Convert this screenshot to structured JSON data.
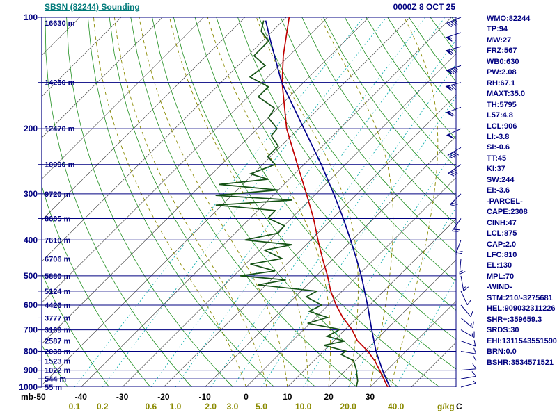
{
  "header": {
    "title": "SBSN (82244) Sounding",
    "valid_time": "0000Z 8 OCT 25"
  },
  "axes": {
    "pressure_unit": "mb",
    "temp_unit": "C",
    "mixing_unit": "g/kg",
    "pressure_labels": [
      100,
      200,
      300,
      400,
      500,
      600,
      700,
      800,
      900,
      1000
    ],
    "altitude_labels": [
      {
        "p": 100,
        "text": "16630 m"
      },
      {
        "p": 150,
        "text": "14250 m"
      },
      {
        "p": 200,
        "text": "12470 m"
      },
      {
        "p": 250,
        "text": "10990 m"
      },
      {
        "p": 300,
        "text": "9720 m"
      },
      {
        "p": 350,
        "text": "8605 m"
      },
      {
        "p": 400,
        "text": "7610 m"
      },
      {
        "p": 450,
        "text": "6706 m"
      },
      {
        "p": 500,
        "text": "5880 m"
      },
      {
        "p": 550,
        "text": "5124 m"
      },
      {
        "p": 600,
        "text": "4426 m"
      },
      {
        "p": 650,
        "text": "3777 m"
      },
      {
        "p": 700,
        "text": "3169 m"
      },
      {
        "p": 750,
        "text": "2587 m"
      },
      {
        "p": 800,
        "text": "2038 m"
      },
      {
        "p": 850,
        "text": "1523 m"
      },
      {
        "p": 900,
        "text": "1022 m"
      },
      {
        "p": 950,
        "text": "544 m"
      },
      {
        "p": 1000,
        "text": "55 m"
      }
    ],
    "temp_labels": [
      -50,
      -40,
      -30,
      -20,
      -10,
      0,
      10,
      20,
      30
    ]
  },
  "colors": {
    "navy": "#000080",
    "teal": "#007a7a",
    "red": "#c00000",
    "dewpoint_green": "#145214",
    "parcel_blue": "#00008b",
    "dry_adiabat_green": "#1f8f1f",
    "mixing_cyan": "#00aaaa",
    "moist_olive": "#8a8a00",
    "isotherm_black": "#2b2b2b"
  },
  "chart_data": {
    "type": "line",
    "subtype": "skew-t-log-p-sounding",
    "station": "SBSN (82244)",
    "valid": "0000Z 8 OCT 25",
    "pressure_range_mb": [
      100,
      1000
    ],
    "grid": {
      "pressure_lines_mb": [
        100,
        150,
        200,
        250,
        300,
        350,
        400,
        450,
        500,
        550,
        600,
        650,
        700,
        750,
        800,
        850,
        900,
        950,
        1000
      ],
      "isotherms_c": {
        "min": -130,
        "max": 40,
        "step": 10
      },
      "dry_adiabats_theta_k": {
        "min": 230,
        "max": 450,
        "step": 10
      },
      "moist_adiabats_start_c": [
        0,
        5,
        10,
        15,
        20,
        25,
        30,
        35
      ],
      "mixing_ratio_gkg": [
        0.1,
        0.2,
        0.6,
        1.0,
        2.0,
        3.0,
        5.0,
        10.0,
        20.0,
        40.0
      ]
    },
    "series": [
      {
        "name": "temperature",
        "color_key": "red",
        "points": [
          [
            1000,
            34.3
          ],
          [
            898,
            28.1
          ],
          [
            848,
            24.7
          ],
          [
            799,
            20.7
          ],
          [
            748,
            15.6
          ],
          [
            698,
            11.6
          ],
          [
            648,
            6.5
          ],
          [
            600,
            1.9
          ],
          [
            550,
            -2.8
          ],
          [
            500,
            -7.3
          ],
          [
            449,
            -12.7
          ],
          [
            400,
            -18.3
          ],
          [
            349,
            -24.7
          ],
          [
            300,
            -32.3
          ],
          [
            250,
            -41.6
          ],
          [
            200,
            -52.9
          ],
          [
            150,
            -65.2
          ],
          [
            127,
            -71.4
          ],
          [
            100,
            -79.3
          ]
        ]
      },
      {
        "name": "dewpoint",
        "color_key": "dewpoint_green",
        "points": [
          [
            1000,
            26.7
          ],
          [
            962,
            25.5
          ],
          [
            898,
            22.5
          ],
          [
            848,
            19.6
          ],
          [
            816,
            15.1
          ],
          [
            799,
            15.4
          ],
          [
            771,
            8.7
          ],
          [
            751,
            12.7
          ],
          [
            729,
            7.3
          ],
          [
            698,
            8.7
          ],
          [
            672,
            -0.6
          ],
          [
            648,
            2.8
          ],
          [
            624,
            -3.1
          ],
          [
            600,
            -1.6
          ],
          [
            570,
            -7.3
          ],
          [
            550,
            -6.2
          ],
          [
            529,
            -22.0
          ],
          [
            513,
            -16.4
          ],
          [
            500,
            -28.4
          ],
          [
            485,
            -21.2
          ],
          [
            465,
            -28.8
          ],
          [
            449,
            -22.5
          ],
          [
            426,
            -28.8
          ],
          [
            412,
            -23.4
          ],
          [
            400,
            -36.0
          ],
          [
            383,
            -29.6
          ],
          [
            366,
            -29.9
          ],
          [
            349,
            -35.7
          ],
          [
            333,
            -35.8
          ],
          [
            322,
            -51.5
          ],
          [
            312,
            -34.2
          ],
          [
            303,
            -53.9
          ],
          [
            293,
            -40.1
          ],
          [
            283,
            -55.7
          ],
          [
            274,
            -45.1
          ],
          [
            265,
            -50.7
          ],
          [
            250,
            -47.0
          ],
          [
            238,
            -50.7
          ],
          [
            223,
            -50.7
          ],
          [
            209,
            -54.9
          ],
          [
            200,
            -55.2
          ],
          [
            187,
            -59.9
          ],
          [
            176,
            -60.8
          ],
          [
            164,
            -67.5
          ],
          [
            154,
            -67.5
          ],
          [
            145,
            -74.3
          ],
          [
            135,
            -73.4
          ],
          [
            127,
            -78.5
          ],
          [
            116,
            -78.5
          ],
          [
            109,
            -82.7
          ],
          [
            102,
            -84.7
          ]
        ]
      },
      {
        "name": "parcel",
        "color_key": "parcel_blue",
        "points": [
          [
            1000,
            34.8
          ],
          [
            898,
            28.8
          ],
          [
            799,
            22.7
          ],
          [
            698,
            16.4
          ],
          [
            600,
            9.5
          ],
          [
            500,
            0.9
          ],
          [
            449,
            -4.5
          ],
          [
            400,
            -10.4
          ],
          [
            349,
            -17.5
          ],
          [
            300,
            -25.7
          ],
          [
            250,
            -35.8
          ],
          [
            200,
            -48.7
          ],
          [
            150,
            -65.3
          ],
          [
            116,
            -78.0
          ],
          [
            102,
            -84.2
          ]
        ]
      }
    ],
    "wind_barbs": [
      [
        1000,
        75,
        5
      ],
      [
        950,
        80,
        10
      ],
      [
        900,
        85,
        10
      ],
      [
        850,
        90,
        10
      ],
      [
        800,
        100,
        10
      ],
      [
        750,
        110,
        10
      ],
      [
        700,
        120,
        15
      ],
      [
        650,
        130,
        15
      ],
      [
        600,
        140,
        10
      ],
      [
        550,
        155,
        10
      ],
      [
        500,
        170,
        15
      ],
      [
        450,
        185,
        15
      ],
      [
        400,
        200,
        20
      ],
      [
        350,
        215,
        20
      ],
      [
        300,
        225,
        25
      ],
      [
        250,
        235,
        35
      ],
      [
        225,
        240,
        40
      ],
      [
        200,
        245,
        50
      ],
      [
        175,
        250,
        60
      ],
      [
        150,
        255,
        75
      ],
      [
        135,
        252,
        85
      ],
      [
        120,
        255,
        65
      ],
      [
        110,
        252,
        55
      ],
      [
        100,
        248,
        45
      ]
    ]
  },
  "panel_lines": [
    "WMO:82244",
    "TP:94",
    "MW:27",
    "FRZ:567",
    "WB0:630",
    "PW:2.08",
    "RH:67.1",
    "MAXT:35.0",
    "TH:5795",
    "L57:4.8",
    "LCL:906",
    "LI:-3.8",
    "SI:-0.6",
    "TT:45",
    "KI:37",
    "SW:244",
    "EI:-3.6",
    "-PARCEL-",
    "CAPE:2308",
    "CINH:47",
    "LCL:875",
    "CAP:2.0",
    "LFC:810",
    "EL:130",
    "MPL:70",
    "-WIND-",
    "STM:210/-3275681",
    "HEL:909032311226",
    "SHR+:359659.3",
    "SRDS:30",
    "EHI:1311543551590",
    "BRN:0.0",
    "BSHR:3534571521"
  ]
}
